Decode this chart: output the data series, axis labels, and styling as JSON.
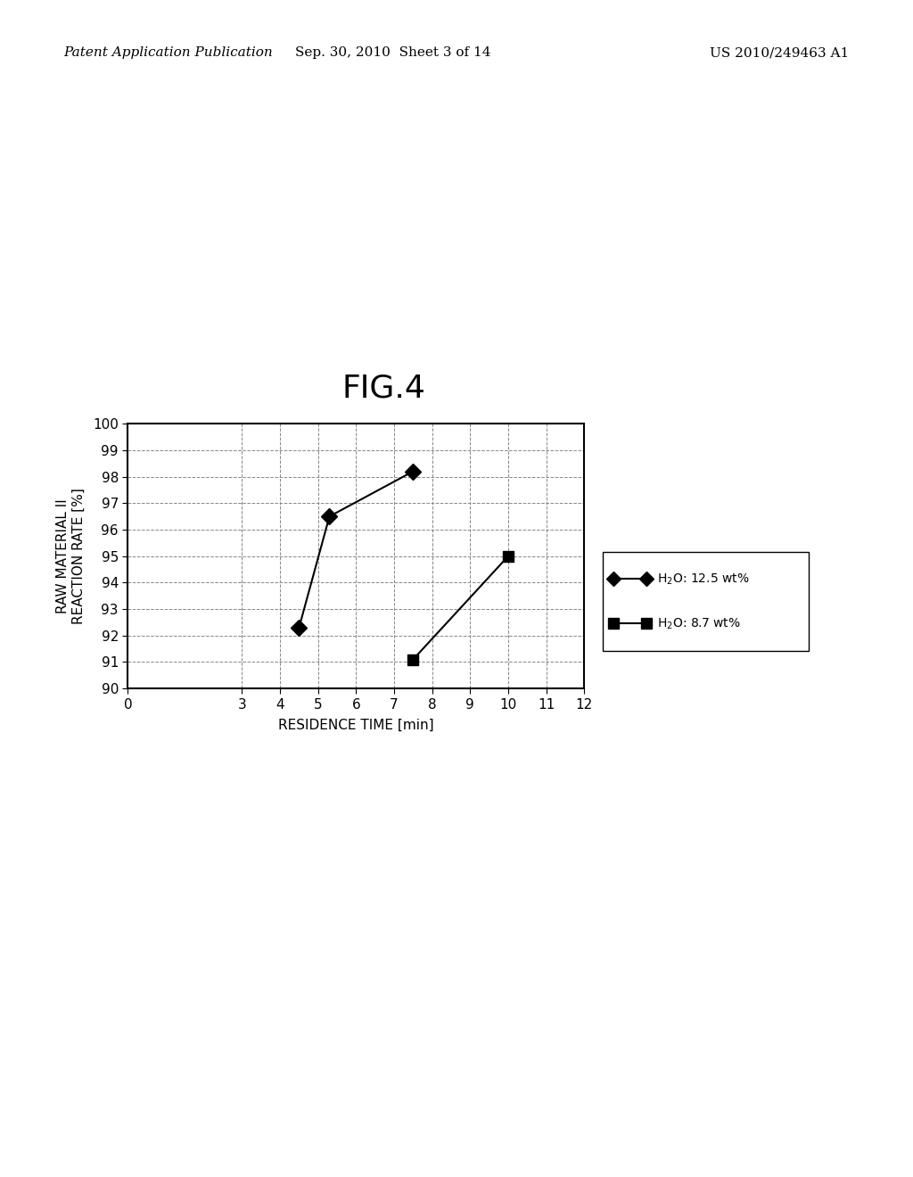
{
  "title": "FIG.4",
  "xlabel": "RESIDENCE TIME [min]",
  "ylabel": "RAW MATERIAL II\nREACTION RATE [%]",
  "xlim": [
    0,
    12
  ],
  "ylim": [
    90,
    100
  ],
  "xticks": [
    0,
    3,
    4,
    5,
    6,
    7,
    8,
    9,
    10,
    11,
    12
  ],
  "yticks": [
    90,
    91,
    92,
    93,
    94,
    95,
    96,
    97,
    98,
    99,
    100
  ],
  "series1_x": [
    4.5,
    5.3,
    7.5
  ],
  "series1_y": [
    92.3,
    96.5,
    98.2
  ],
  "series1_label": "H₂O: 12.5 wt%",
  "series2_x": [
    7.5,
    10.0
  ],
  "series2_y": [
    91.1,
    95.0
  ],
  "series2_label": "H₂O: 8.7 wt%",
  "line_color": "#000000",
  "marker1": "D",
  "marker2": "s",
  "marker_size": 9,
  "background_color": "#ffffff",
  "header_left": "Patent Application Publication",
  "header_center": "Sep. 30, 2010  Sheet 3 of 14",
  "header_right": "US 2010/249463 A1",
  "title_fontsize": 26,
  "header_fontsize": 11,
  "axis_label_fontsize": 11,
  "tick_fontsize": 11
}
